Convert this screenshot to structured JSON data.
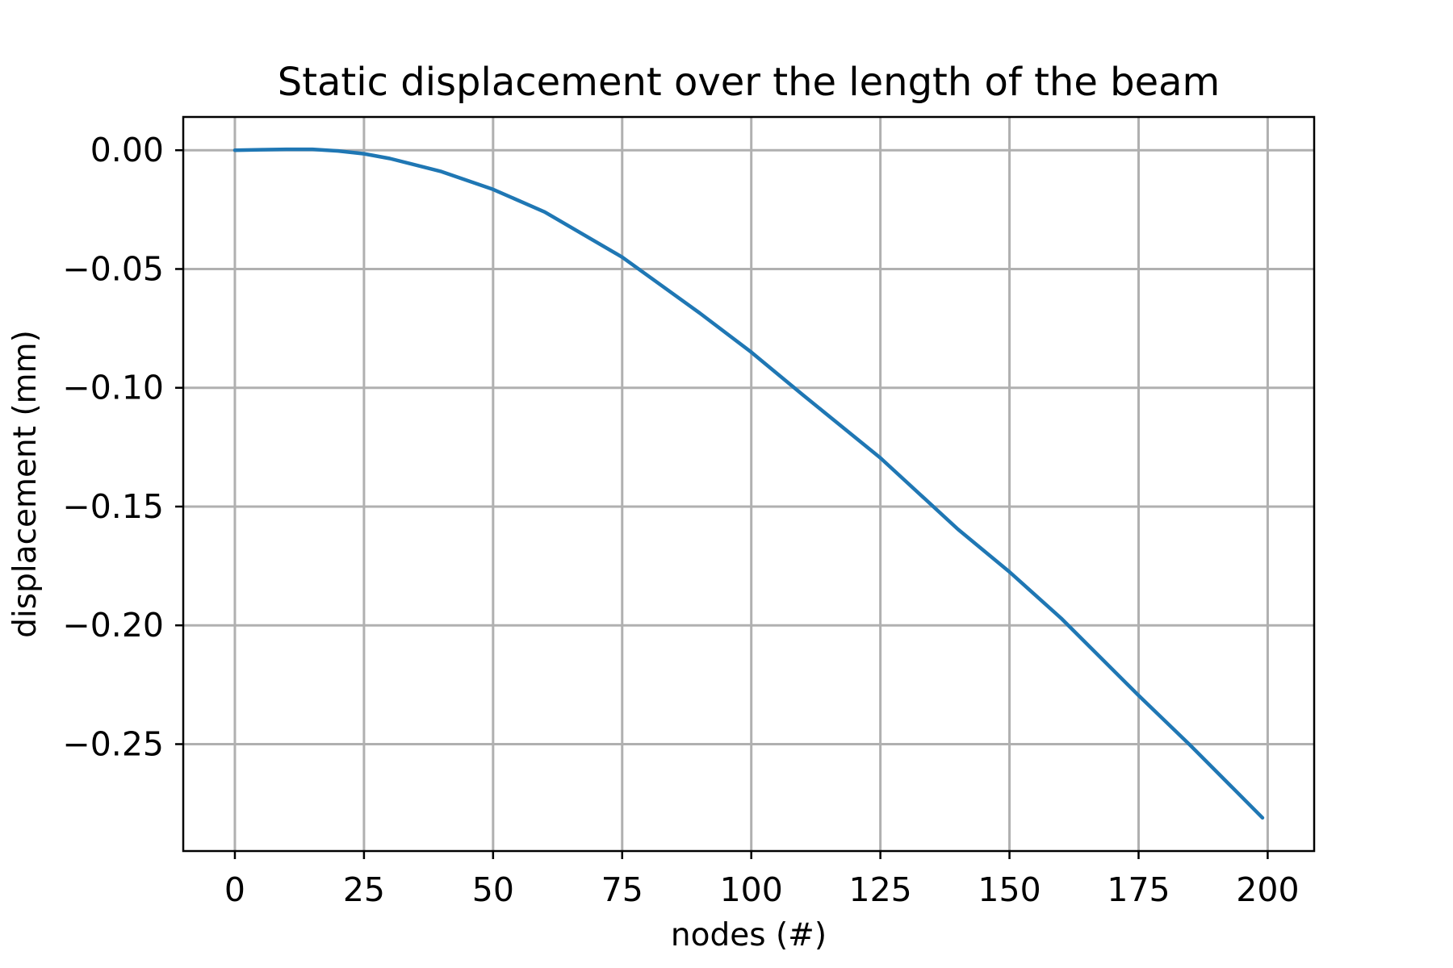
{
  "chart_data": {
    "type": "line",
    "title": "Static displacement over the length of the beam",
    "xlabel": "nodes (#)",
    "ylabel": "displacement (mm)",
    "xlim": [
      -10,
      209
    ],
    "ylim": [
      -0.295,
      0.014
    ],
    "xticks": [
      0,
      25,
      50,
      75,
      100,
      125,
      150,
      175,
      200
    ],
    "xtick_labels": [
      "0",
      "25",
      "50",
      "75",
      "100",
      "125",
      "150",
      "175",
      "200"
    ],
    "yticks": [
      0,
      -0.05,
      -0.1,
      -0.15,
      -0.2,
      -0.25
    ],
    "ytick_labels": [
      "0.00",
      "−0.05",
      "−0.10",
      "−0.15",
      "−0.20",
      "−0.25"
    ],
    "grid": true,
    "series": [
      {
        "color": "#1f77b4",
        "x": [
          0,
          5,
          10,
          15,
          20,
          25,
          30,
          40,
          50,
          60,
          75,
          90,
          100,
          110,
          125,
          140,
          150,
          160,
          175,
          185,
          199
        ],
        "values": [
          0,
          0.0002,
          0.0004,
          0.0004,
          -0.0003,
          -0.0015,
          -0.0035,
          -0.009,
          -0.0165,
          -0.026,
          -0.045,
          -0.0685,
          -0.085,
          -0.103,
          -0.1295,
          -0.1595,
          -0.1775,
          -0.197,
          -0.2295,
          -0.2505,
          -0.281
        ]
      }
    ]
  }
}
